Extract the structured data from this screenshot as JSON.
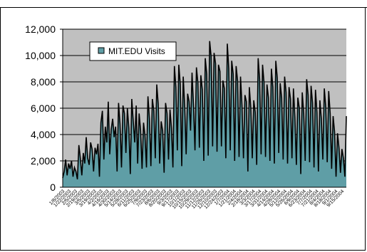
{
  "chart_data": {
    "type": "area",
    "title": "",
    "xlabel": "",
    "ylabel": "",
    "ylim": [
      0,
      12000
    ],
    "yticks": [
      0,
      2000,
      4000,
      6000,
      8000,
      10000,
      12000
    ],
    "ytick_labels": [
      "0",
      "2,000",
      "4,000",
      "6,000",
      "8,000",
      "10,000",
      "12,000"
    ],
    "grid": true,
    "legend": "top-left",
    "plot_background": "#c0c0c0",
    "colors": {
      "fill": "#5f9ea6",
      "line": "#000000",
      "grid": "#000000"
    },
    "series": [
      {
        "name": "MIT.EDU Visits",
        "values": [
          700,
          1200,
          2100,
          900,
          1800,
          1400,
          2000,
          800,
          1500,
          1200,
          600,
          3200,
          2200,
          900,
          2600,
          1800,
          3800,
          2200,
          1700,
          3400,
          2900,
          1200,
          3000,
          2500,
          3300,
          800,
          4900,
          5800,
          2100,
          4600,
          3400,
          6500,
          2500,
          4400,
          5200,
          3800,
          4600,
          1200,
          6400,
          4800,
          1500,
          6200,
          5600,
          2600,
          6000,
          4500,
          1000,
          6700,
          5000,
          3400,
          6200,
          1800,
          5600,
          4300,
          1400,
          4900,
          3900,
          1500,
          6900,
          5200,
          1600,
          6700,
          5800,
          2200,
          7800,
          6300,
          1800,
          5000,
          4300,
          1100,
          6400,
          5600,
          2100,
          5900,
          4500,
          1500,
          9200,
          7600,
          2800,
          9300,
          7800,
          1600,
          8400,
          6200,
          2500,
          7100,
          6500,
          4300,
          8700,
          6200,
          2800,
          9100,
          7900,
          3000,
          8500,
          7400,
          2000,
          9800,
          8600,
          2400,
          11100,
          9900,
          3100,
          10200,
          9400,
          2700,
          9300,
          8800,
          3100,
          8100,
          7500,
          2200,
          10900,
          9000,
          2800,
          9600,
          8600,
          2000,
          9200,
          8100,
          2300,
          8400,
          6200,
          2200,
          7000,
          6500,
          1200,
          7600,
          6000,
          2200,
          6600,
          5700,
          1700,
          9800,
          8200,
          2500,
          9300,
          7900,
          2300,
          7800,
          6800,
          2000,
          9000,
          7600,
          1800,
          9600,
          8300,
          2600,
          7900,
          6800,
          2100,
          8400,
          7200,
          1800,
          7600,
          6700,
          2200,
          7500,
          5300,
          1700,
          6800,
          6000,
          1000,
          7200,
          5600,
          2000,
          8200,
          7000,
          1900,
          7700,
          6400,
          1500,
          7400,
          5700,
          1200,
          6600,
          5200,
          2100,
          7500,
          6100,
          1900,
          7300,
          5600,
          1400,
          5400,
          4200,
          800,
          4100,
          3000,
          1100,
          2900,
          2200,
          800,
          5400
        ]
      }
    ],
    "x_tick_labels": [
      "1/8/2003",
      "1/22/2003",
      "2/5/2003",
      "2/19/2003",
      "3/5/2003",
      "3/19/2003",
      "4/2/2003",
      "4/16/2003",
      "4/30/2003",
      "5/14/2003",
      "5/28/2003",
      "6/11/2003",
      "6/25/2003",
      "7/9/2003",
      "7/23/2003",
      "8/6/2003",
      "8/20/2003",
      "9/3/2003",
      "9/17/2003",
      "10/1/2003",
      "10/15/2003",
      "10/29/2003",
      "11/12/2003",
      "11/26/2003",
      "12/10/2003",
      "12/24/2003",
      "1/7/2004",
      "1/21/2004",
      "2/4/2004",
      "2/18/2004",
      "3/3/2004",
      "3/17/2004",
      "3/31/2004",
      "4/14/2004",
      "4/28/2004",
      "5/12/2004",
      "5/26/2004",
      "6/9/2004",
      "6/23/2004",
      "7/7/2004",
      "7/21/2004",
      "8/4/2004",
      "8/18/2004",
      "9/1/2004",
      "9/15/2004"
    ]
  }
}
